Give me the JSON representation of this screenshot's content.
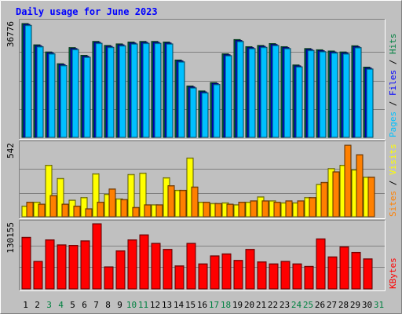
{
  "chart_data": {
    "type": "bar",
    "title": "Daily usage for June 2023",
    "days": [
      "1",
      "2",
      "3",
      "4",
      "5",
      "6",
      "7",
      "8",
      "9",
      "10",
      "11",
      "12",
      "13",
      "14",
      "15",
      "16",
      "17",
      "18",
      "19",
      "20",
      "21",
      "22",
      "23",
      "24",
      "25",
      "26",
      "27",
      "28",
      "29",
      "30",
      "31"
    ],
    "weekend_days": [
      "3",
      "4",
      "10",
      "11",
      "17",
      "18",
      "24",
      "25",
      "31"
    ],
    "panels": [
      {
        "name": "hits-files-pages",
        "axis_max_label": "36776",
        "ymax": 36776,
        "side_labels": [
          {
            "text": "Pages",
            "color": "#00c0ff"
          },
          {
            "text": " / ",
            "color": "#000000"
          },
          {
            "text": "Files",
            "color": "#0000ff"
          },
          {
            "text": " / ",
            "color": "#000000"
          },
          {
            "text": "Hits",
            "color": "#008040"
          }
        ],
        "series": [
          {
            "name": "Hits",
            "color": "#008040",
            "values": [
              36776,
              29900,
              27600,
              23800,
              29000,
              26500,
              31000,
              29700,
              30200,
              30800,
              31000,
              31000,
              30800,
              25000,
              16600,
              15000,
              17700,
              27000,
              31600,
              29300,
              29700,
              30300,
              29300,
              23400,
              28700,
              28300,
              27900,
              27600,
              29600,
              22700,
              0
            ]
          },
          {
            "name": "Files",
            "color": "#0000ff",
            "values": [
              36500,
              29600,
              27300,
              23500,
              28700,
              26200,
              30700,
              29400,
              29900,
              30500,
              30700,
              30700,
              30500,
              24700,
              16300,
              14700,
              17400,
              26700,
              31300,
              29000,
              29400,
              30000,
              29000,
              23100,
              28400,
              28000,
              27600,
              27300,
              29300,
              22400,
              0
            ]
          },
          {
            "name": "Pages",
            "color": "#00c0ff",
            "values": [
              36200,
              29300,
              27000,
              23200,
              28400,
              25900,
              30400,
              29100,
              29600,
              30200,
              30400,
              30400,
              30200,
              24400,
              16000,
              14400,
              17100,
              26400,
              31000,
              28700,
              29100,
              29700,
              28700,
              22800,
              28100,
              27700,
              27300,
              27000,
              29000,
              22100,
              0
            ]
          }
        ]
      },
      {
        "name": "visits-sites",
        "axis_max_label": "542",
        "ymax": 542,
        "side_labels": [
          {
            "text": "Sites",
            "color": "#ff8000"
          },
          {
            "text": " / ",
            "color": "#000000"
          },
          {
            "text": "Visits",
            "color": "#ffff00"
          }
        ],
        "series": [
          {
            "name": "Visits",
            "color": "#ffff00",
            "values": [
              80,
              110,
              390,
              290,
              125,
              145,
              325,
              170,
              135,
              320,
              330,
              90,
              295,
              200,
              445,
              110,
              100,
              105,
              90,
              110,
              150,
              120,
              105,
              105,
              145,
              245,
              365,
              390,
              355,
              300,
              0
            ]
          },
          {
            "name": "Sites",
            "color": "#ff8000",
            "values": [
              110,
              95,
              160,
              95,
              80,
              60,
              110,
              210,
              130,
              70,
              90,
              90,
              235,
              200,
              225,
              110,
              100,
              95,
              110,
              120,
              120,
              110,
              120,
              120,
              145,
              260,
              340,
              542,
              470,
              300,
              0
            ]
          }
        ]
      },
      {
        "name": "kbytes",
        "axis_max_label": "130155",
        "ymax": 130155,
        "side_labels": [
          {
            "text": "KBytes",
            "color": "#ff0000"
          }
        ],
        "series": [
          {
            "name": "KBytes",
            "color": "#ff0000",
            "values": [
              103000,
              55000,
              98000,
              88000,
              87000,
              96000,
              130155,
              44000,
              76000,
              98000,
              108000,
              91000,
              79000,
              46000,
              91000,
              50000,
              66000,
              70000,
              57000,
              79000,
              54000,
              50000,
              55000,
              50000,
              45000,
              100000,
              64000,
              84000,
              73000,
              60000,
              0
            ]
          }
        ]
      }
    ]
  }
}
